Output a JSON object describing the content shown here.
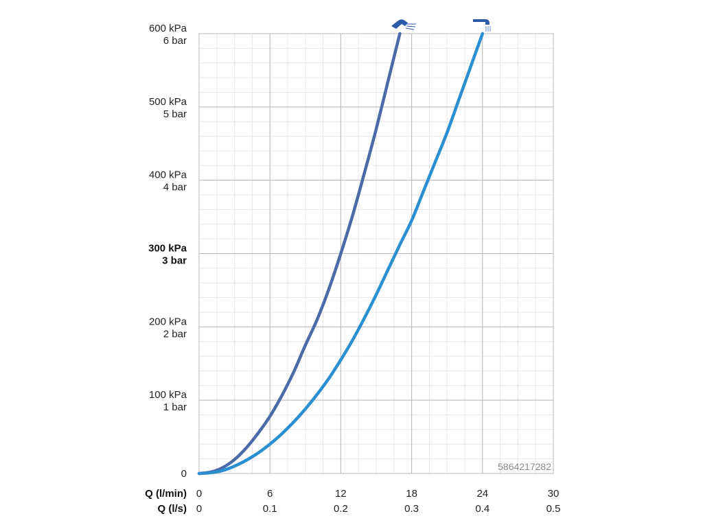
{
  "chart_data": {
    "type": "line",
    "xlabel_primary": "Q (l/min)",
    "xlabel_secondary": "Q (l/s)",
    "xlim": [
      0,
      30
    ],
    "ylim": [
      0,
      600
    ],
    "x_ticks_primary": [
      "0",
      "6",
      "12",
      "18",
      "24",
      "30"
    ],
    "x_ticks_secondary": [
      "0",
      "0.1",
      "0.2",
      "0.3",
      "0.4",
      "0.5"
    ],
    "y_ticks": [
      {
        "kpa": "0",
        "bar": ""
      },
      {
        "kpa": "100 kPa",
        "bar": "1 bar"
      },
      {
        "kpa": "200 kPa",
        "bar": "2 bar"
      },
      {
        "kpa": "300 kPa",
        "bar": "3 bar",
        "bold": true
      },
      {
        "kpa": "400 kPa",
        "bar": "4 bar"
      },
      {
        "kpa": "500 kPa",
        "bar": "5 bar"
      },
      {
        "kpa": "600 kPa",
        "bar": "6 bar"
      }
    ],
    "grid": true,
    "series": [
      {
        "icon": "spray-shower-head-icon",
        "color": "#4a6aa8",
        "x": [
          0,
          1,
          2,
          3,
          4,
          5,
          6,
          7,
          8,
          9,
          10,
          11,
          12,
          13,
          14,
          15,
          16,
          17
        ],
        "y": [
          0,
          2,
          8,
          19,
          35,
          55,
          78,
          106,
          138,
          175,
          210,
          252,
          300,
          352,
          410,
          470,
          535,
          600
        ]
      },
      {
        "icon": "rain-shower-head-icon",
        "color": "#2a8fd0",
        "x": [
          0,
          1,
          2,
          3,
          4,
          5,
          6,
          7,
          8,
          9,
          10,
          11,
          12,
          13,
          14,
          15,
          16,
          17,
          18,
          19,
          20,
          21,
          22,
          23,
          24
        ],
        "y": [
          0,
          1,
          4,
          10,
          18,
          28,
          40,
          54,
          70,
          88,
          108,
          130,
          155,
          182,
          212,
          244,
          278,
          312,
          345,
          385,
          425,
          465,
          510,
          555,
          600
        ]
      }
    ],
    "watermark": "5864217282"
  }
}
